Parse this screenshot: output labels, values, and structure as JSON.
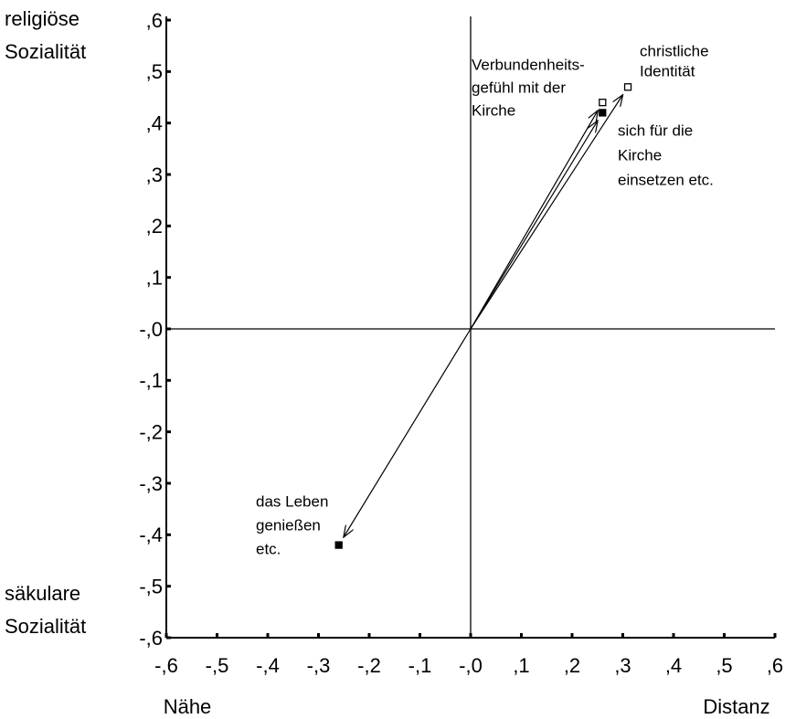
{
  "chart_data": {
    "type": "scatter",
    "xlim": [
      -0.6,
      0.6
    ],
    "ylim": [
      -0.6,
      0.6
    ],
    "xticks": [
      {
        "value": -0.6,
        "label": "-,6"
      },
      {
        "value": -0.5,
        "label": "-,5"
      },
      {
        "value": -0.4,
        "label": "-,4"
      },
      {
        "value": -0.3,
        "label": "-,3"
      },
      {
        "value": -0.2,
        "label": "-,2"
      },
      {
        "value": -0.1,
        "label": "-,1"
      },
      {
        "value": 0,
        "label": "-,0"
      },
      {
        "value": 0.1,
        "label": ",1"
      },
      {
        "value": 0.2,
        "label": ",2"
      },
      {
        "value": 0.3,
        "label": ",3"
      },
      {
        "value": 0.4,
        "label": ",4"
      },
      {
        "value": 0.5,
        "label": ",5"
      },
      {
        "value": 0.6,
        "label": ",6"
      }
    ],
    "yticks": [
      {
        "value": 0.6,
        "label": ",6"
      },
      {
        "value": 0.5,
        "label": ",5"
      },
      {
        "value": 0.4,
        "label": ",4"
      },
      {
        "value": 0.3,
        "label": ",3"
      },
      {
        "value": 0.2,
        "label": ",2"
      },
      {
        "value": 0.1,
        "label": ",1"
      },
      {
        "value": 0,
        "label": "-,0"
      },
      {
        "value": -0.1,
        "label": "-,1"
      },
      {
        "value": -0.2,
        "label": "-,2"
      },
      {
        "value": -0.3,
        "label": "-,3"
      },
      {
        "value": -0.4,
        "label": "-,4"
      },
      {
        "value": -0.5,
        "label": "-,5"
      },
      {
        "value": -0.6,
        "label": "-,6"
      }
    ],
    "y_axis_labels": {
      "top": [
        "religiöse",
        "Sozialität"
      ],
      "bottom": [
        "säkulare",
        "Sozialität"
      ]
    },
    "x_axis_labels": {
      "left": "Nähe",
      "right": "Distanz"
    },
    "series": [
      {
        "name": [
          "Verbundenheits-",
          "gefühl mit der",
          "Kirche"
        ],
        "x": [
          0.26
        ],
        "values": [
          0.44
        ],
        "marker": "open"
      },
      {
        "name": [
          "christliche",
          "Identität"
        ],
        "x": [
          0.31
        ],
        "values": [
          0.47
        ],
        "marker": "open"
      },
      {
        "name": [
          "sich für die",
          "Kirche",
          "einsetzen etc."
        ],
        "x": [
          0.26
        ],
        "values": [
          0.42
        ],
        "marker": "filled"
      },
      {
        "name": [
          "das Leben",
          "genießen",
          "etc."
        ],
        "x": [
          -0.26
        ],
        "values": [
          -0.42
        ],
        "marker": "filled"
      }
    ]
  }
}
